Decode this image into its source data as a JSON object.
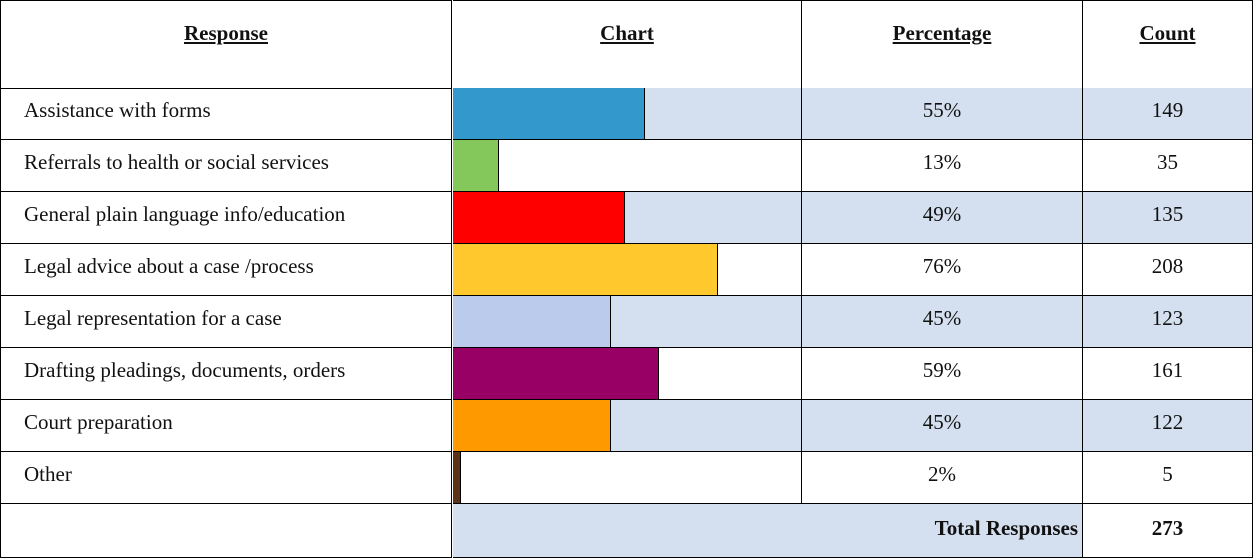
{
  "table": {
    "headers": [
      "Response",
      "Chart",
      "Percentage",
      "Count"
    ],
    "rows": [
      {
        "response": "Assistance with forms",
        "color": "#3399cc",
        "percentage": 55,
        "percentage_label": "55%",
        "count": 149
      },
      {
        "response": "Referrals to health or social services",
        "color": "#84c75b",
        "percentage": 13,
        "percentage_label": "13%",
        "count": 35
      },
      {
        "response": "General plain language info/education",
        "color": "#ff0000",
        "percentage": 49,
        "percentage_label": "49%",
        "count": 135
      },
      {
        "response": "Legal advice about a case /process",
        "color": "#ffc82c",
        "percentage": 76,
        "percentage_label": "76%",
        "count": 208
      },
      {
        "response": "Legal representation for a case",
        "color": "#bacbec",
        "percentage": 45,
        "percentage_label": "45%",
        "count": 123
      },
      {
        "response": "Drafting pleadings, documents, orders",
        "color": "#990066",
        "percentage": 59,
        "percentage_label": "59%",
        "count": 161
      },
      {
        "response": "Court preparation",
        "color": "#ff9900",
        "percentage": 45,
        "percentage_label": "45%",
        "count": 122
      },
      {
        "response": "Other",
        "color": "#5c3317",
        "percentage": 2,
        "percentage_label": "2%",
        "count": 5
      }
    ],
    "total_label": "Total Responses",
    "total": 273
  }
}
